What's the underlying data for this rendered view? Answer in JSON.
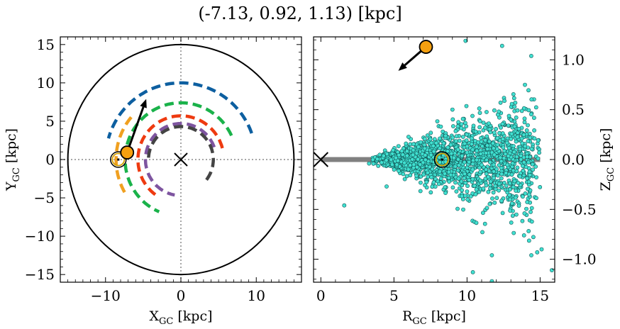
{
  "title": "(-7.13, 0.92, 1.13) [kpc]",
  "chart_data": [
    {
      "type": "scatter",
      "name": "xy-panel",
      "xlabel_main": "X",
      "xlabel_sub": "GC",
      "xlabel_unit": " [kpc]",
      "ylabel_main": "Y",
      "ylabel_sub": "GC",
      "ylabel_unit": " [kpc]",
      "xlim": [
        -16,
        16
      ],
      "ylim": [
        -16,
        16
      ],
      "xticks": [
        -10,
        0,
        10
      ],
      "yticks": [
        -15,
        -10,
        -5,
        0,
        5,
        10,
        15
      ],
      "tick_labels_x": [
        "−10",
        "0",
        "10"
      ],
      "tick_labels_y": [
        "−15",
        "−10",
        "−5",
        "0",
        "5",
        "10",
        "15"
      ],
      "boundary_circle_radius": 15,
      "galactic_center": [
        0,
        0
      ],
      "sun_position": [
        -8.3,
        0
      ],
      "object_position": [
        -7.13,
        0.92
      ],
      "velocity_arrow_tip": [
        -4.6,
        7.9
      ],
      "spiral_arms": [
        {
          "color": "#0d5fa0",
          "radius": 10.0,
          "from_deg": 20,
          "to_deg": 165
        },
        {
          "color": "#1ab24a",
          "radius": 7.4,
          "from_deg": 25,
          "to_deg": 248
        },
        {
          "color": "#f0a020",
          "radius": 8.6,
          "from_deg": 140,
          "to_deg": 215
        },
        {
          "color": "#ee3a10",
          "radius": 5.7,
          "from_deg": 15,
          "to_deg": 238
        },
        {
          "color": "#7e55a0",
          "radius": 4.7,
          "from_deg": 20,
          "to_deg": 260
        },
        {
          "color": "#444444",
          "radius": 4.3,
          "from_deg": 322,
          "to_deg": 180
        }
      ]
    },
    {
      "type": "scatter",
      "name": "rz-panel",
      "xlabel_main": "R",
      "xlabel_sub": "GC",
      "xlabel_unit": " [kpc]",
      "ylabel_main": "Z",
      "ylabel_sub": "GC",
      "ylabel_unit": " [kpc]",
      "xlim": [
        -0.5,
        16
      ],
      "ylim": [
        -1.23,
        1.23
      ],
      "xticks": [
        0,
        5,
        10,
        15
      ],
      "yticks": [
        -1.0,
        -0.5,
        0.0,
        0.5,
        1.0
      ],
      "tick_labels_x": [
        "0",
        "5",
        "10",
        "15"
      ],
      "tick_labels_y": [
        "−1.0",
        "−0.5",
        "0.0",
        "0.5",
        "1.0"
      ],
      "disk_line_x": [
        0,
        15
      ],
      "disk_line_y": 0,
      "galactic_center": [
        0,
        0
      ],
      "sun_position": [
        8.3,
        0.0
      ],
      "object_position": [
        7.19,
        1.13
      ],
      "velocity_arrow_tip": [
        5.3,
        0.89
      ],
      "point_color": "#40e0d0",
      "notable_points": [
        [
          1.6,
          -0.46
        ],
        [
          9.9,
          1.19
        ],
        [
          12.4,
          1.14
        ],
        [
          14.8,
          -0.93
        ],
        [
          15.1,
          -0.9
        ],
        [
          15.8,
          -1.11
        ],
        [
          10.4,
          -1.13
        ],
        [
          11.7,
          -1.22
        ],
        [
          14.4,
          -0.96
        ],
        [
          13.9,
          -0.76
        ],
        [
          11.7,
          -0.96
        ],
        [
          3.3,
          -0.04
        ],
        [
          4.5,
          -0.27
        ],
        [
          13.0,
          0.4
        ]
      ]
    }
  ]
}
